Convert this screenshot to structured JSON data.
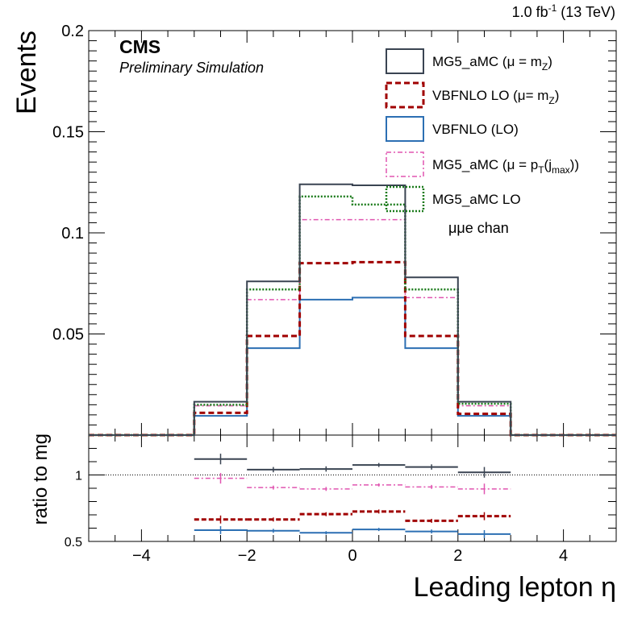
{
  "header": {
    "lumi": "1.0 fb",
    "lumi_sup": "-1",
    "energy": " (13 TeV)",
    "experiment": "CMS",
    "subtitle": "Preliminary Simulation",
    "channel": "μμe chan"
  },
  "chart_data": [
    {
      "type": "line",
      "style": "step-histogram",
      "ylabel": "Events",
      "ylim": [
        0,
        0.2
      ],
      "xlim": [
        -5,
        5
      ],
      "y_ticks": [
        "0.05",
        "0.1",
        "0.15",
        "0.2"
      ],
      "bin_edges": [
        -5,
        -4,
        -3,
        -2,
        -1,
        0,
        1,
        2,
        3,
        4,
        5
      ],
      "legend_position": "top-right",
      "series": [
        {
          "name": "MG5_aMC (μ = m",
          "name_sub": "Z",
          "name_tail": ")",
          "color": "#3a4452",
          "dash": "",
          "width": 2,
          "values": [
            0,
            0,
            0.0165,
            0.076,
            0.124,
            0.1235,
            0.078,
            0.0165,
            0,
            0
          ]
        },
        {
          "name": "VBFNLO LO (μ= m",
          "name_sub": "Z",
          "name_tail": ")",
          "color": "#a00000",
          "dash": "7,4",
          "width": 3,
          "values": [
            0,
            0,
            0.011,
            0.049,
            0.085,
            0.0855,
            0.049,
            0.0105,
            0,
            0
          ]
        },
        {
          "name": "VBFNLO (LO)",
          "color": "#2c6fb3",
          "dash": "",
          "width": 2,
          "values": [
            0,
            0,
            0.0095,
            0.043,
            0.067,
            0.068,
            0.043,
            0.0095,
            0,
            0
          ]
        },
        {
          "name": "MG5_aMC (μ = p",
          "name_sub": "T",
          "name_tail": "(j",
          "name_sub2": "max",
          "name_tail2": "))",
          "color": "#e055b0",
          "dash": "6,3,2,3",
          "width": 1.5,
          "values": [
            0,
            0,
            0.0145,
            0.067,
            0.1065,
            0.1065,
            0.068,
            0.0145,
            0,
            0
          ]
        },
        {
          "name": "MG5_aMC LO",
          "color": "#1a7a1a",
          "dash": "2,2",
          "width": 2.5,
          "values": [
            0,
            0,
            0.015,
            0.072,
            0.118,
            0.114,
            0.072,
            0.0155,
            0,
            0
          ]
        }
      ]
    },
    {
      "type": "scatter",
      "ylabel": "ratio to mg",
      "xlabel": "Leading lepton η",
      "ylim": [
        0.5,
        1.3
      ],
      "xlim": [
        -5,
        5
      ],
      "x_ticks": [
        "−4",
        "−2",
        "0",
        "2",
        "4"
      ],
      "y_ticks": [
        "0.5",
        "1"
      ],
      "reference_line": 1,
      "bin_edges": [
        -3,
        -2,
        -1,
        0,
        1,
        2,
        3
      ],
      "series": [
        {
          "ref": "MG5_aMC (μ = m",
          "color": "#3a4452",
          "dash": "",
          "width": 2,
          "values": [
            1.12,
            1.04,
            1.045,
            1.075,
            1.06,
            1.02
          ],
          "errors": [
            0.04,
            0.02,
            0.02,
            0.015,
            0.02,
            0.04
          ]
        },
        {
          "ref": "VBFNLO LO (μ= m",
          "color": "#a00000",
          "dash": "6,3",
          "width": 3,
          "values": [
            0.665,
            0.665,
            0.705,
            0.725,
            0.655,
            0.69
          ],
          "errors": [
            0.03,
            0.015,
            0.015,
            0.015,
            0.015,
            0.03
          ]
        },
        {
          "ref": "VBFNLO (LO)",
          "color": "#2c6fb3",
          "dash": "",
          "width": 2,
          "values": [
            0.585,
            0.58,
            0.565,
            0.59,
            0.575,
            0.555
          ],
          "errors": [
            0.03,
            0.015,
            0.012,
            0.012,
            0.015,
            0.03
          ]
        },
        {
          "ref": "MG5_aMC (μ = p",
          "color": "#e055b0",
          "dash": "6,3,2,3",
          "width": 1.5,
          "values": [
            0.975,
            0.905,
            0.895,
            0.925,
            0.91,
            0.895
          ],
          "errors": [
            0.04,
            0.015,
            0.015,
            0.012,
            0.015,
            0.04
          ]
        }
      ]
    }
  ]
}
